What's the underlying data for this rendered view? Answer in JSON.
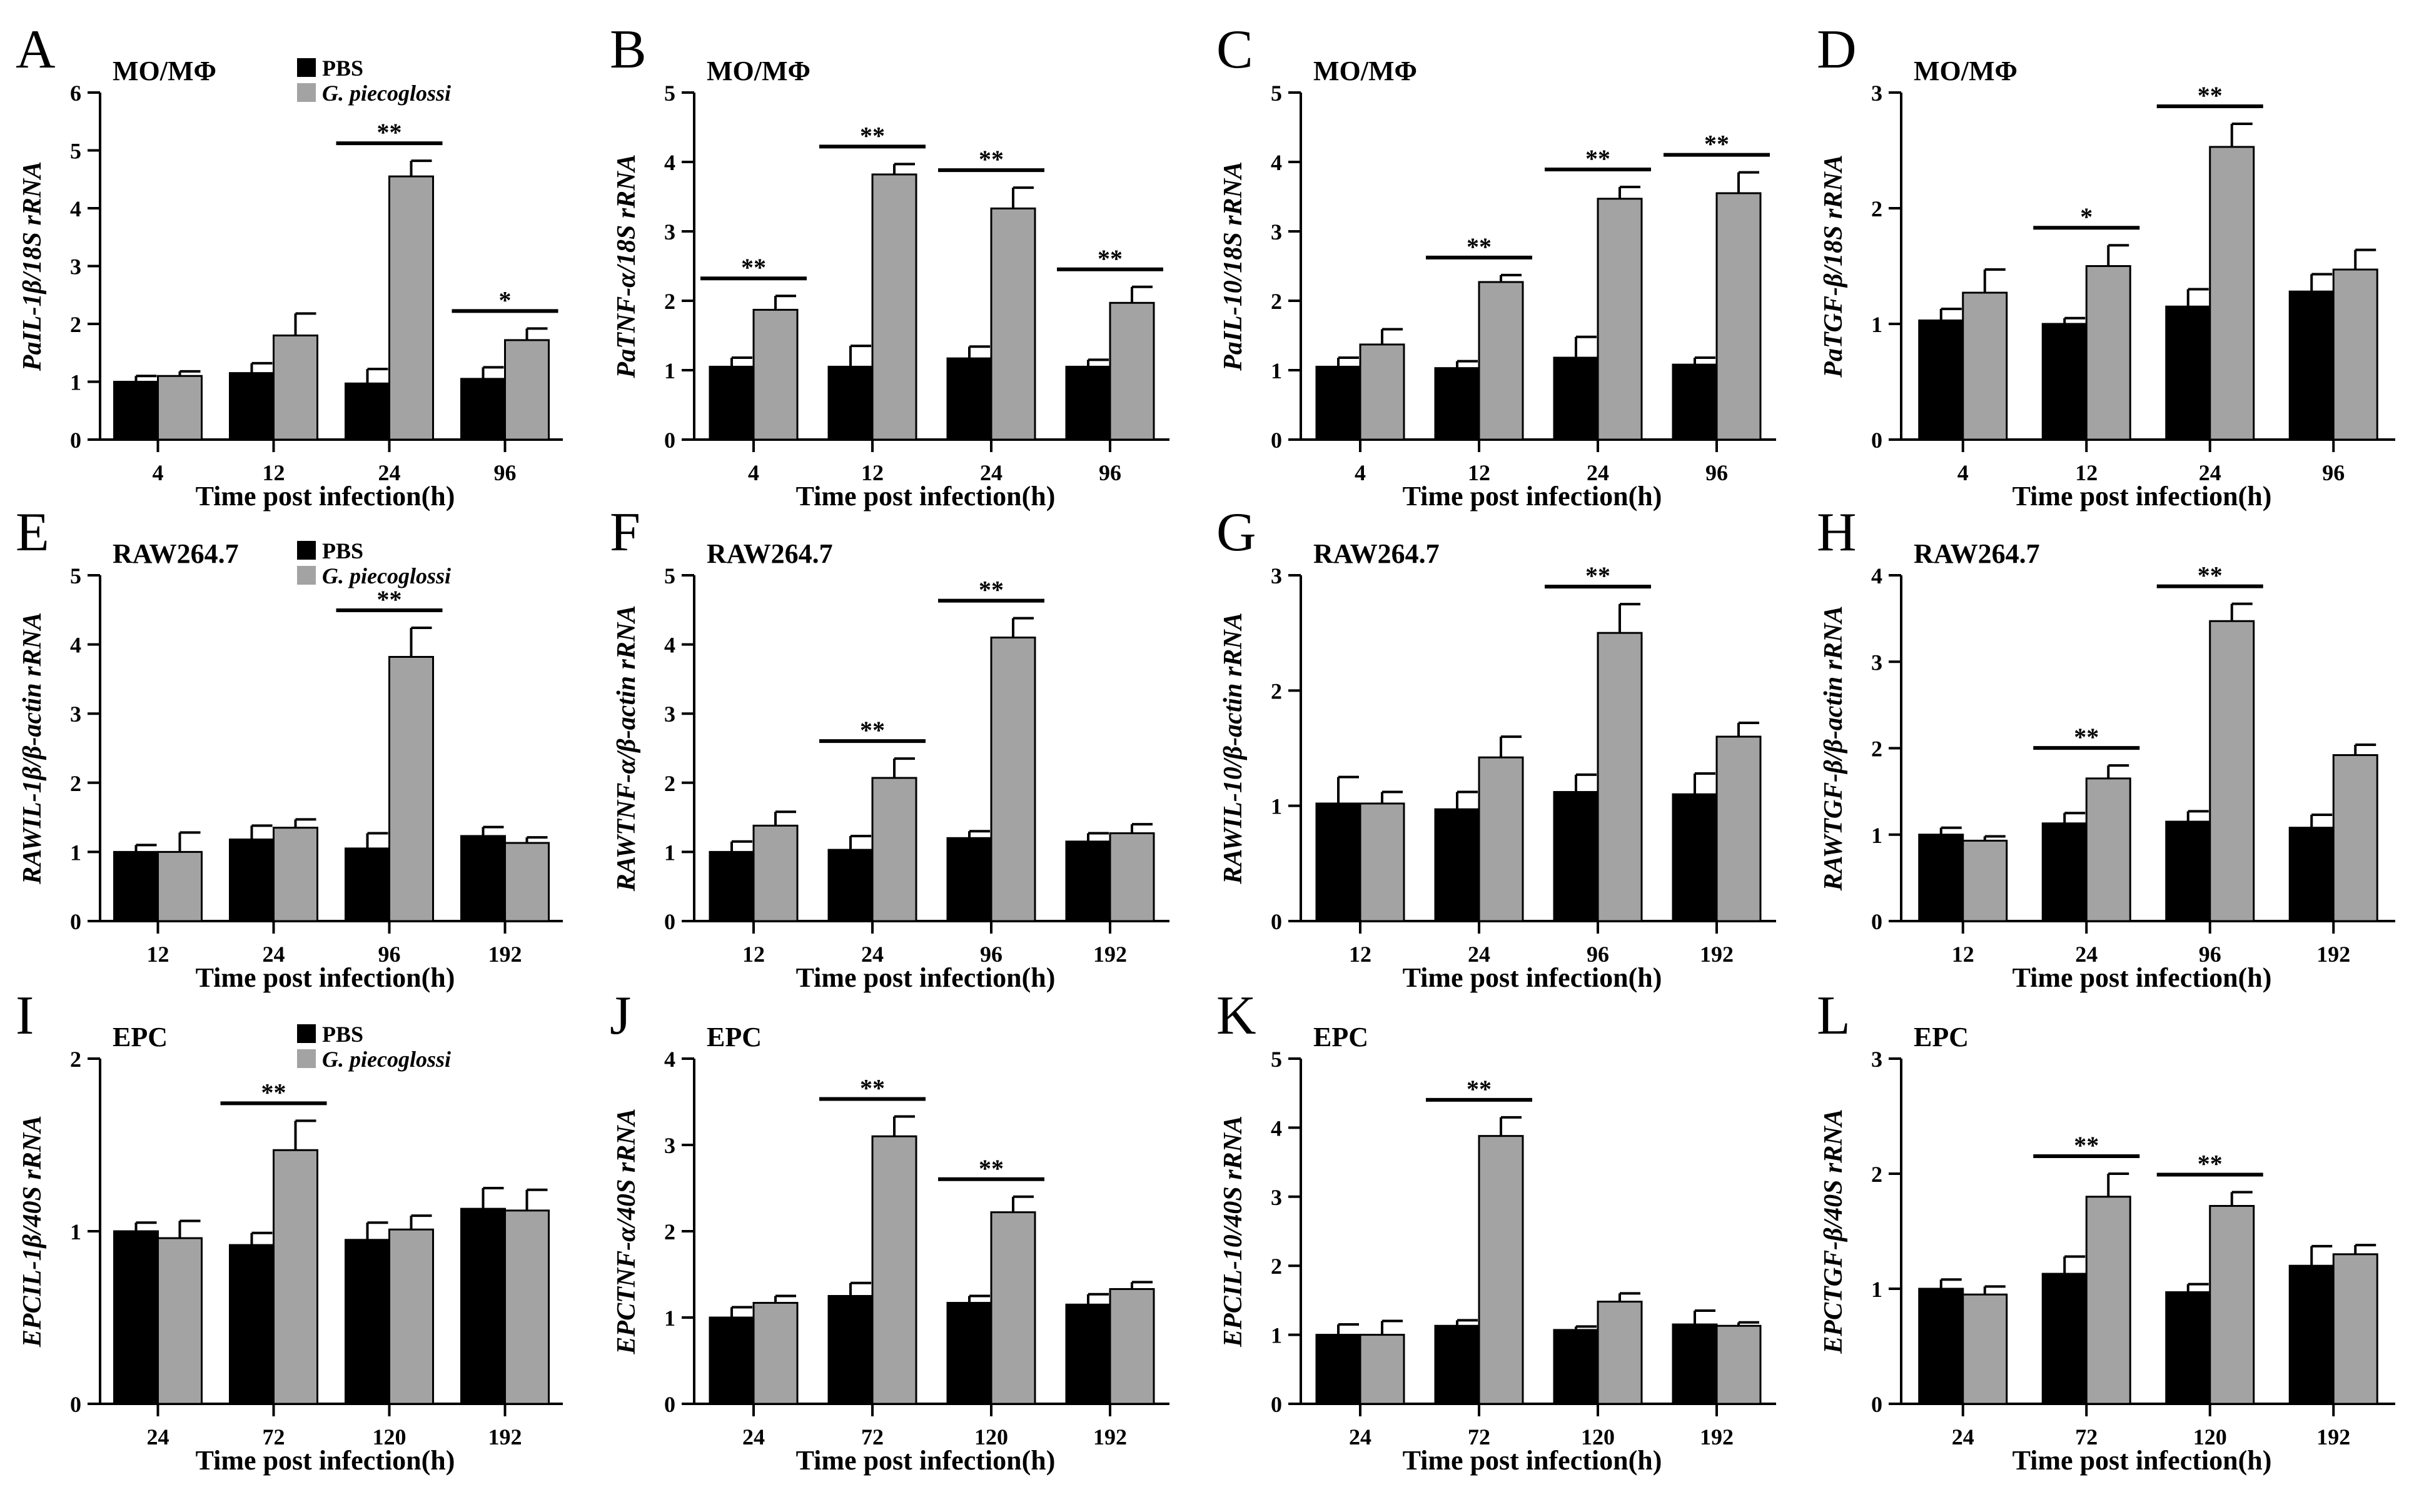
{
  "figure": {
    "series_names": [
      "PBS",
      "G. piecoglossi"
    ],
    "colors": {
      "pbs": "#000000",
      "infected": "#a3a3a3",
      "axis": "#000000",
      "background": "#ffffff"
    }
  },
  "chart_data": [
    {
      "id": "A",
      "type": "bar",
      "title": "MO/MΦ",
      "ylabel": "PaIL-1β/18S rRNA",
      "xlabel": "Time post infection(h)",
      "categories": [
        "4",
        "12",
        "24",
        "96"
      ],
      "ylim": [
        0,
        6
      ],
      "yticks": [
        "0",
        "1",
        "2",
        "3",
        "4",
        "5",
        "6"
      ],
      "legend": true,
      "series": [
        {
          "name": "PBS",
          "values": [
            1.0,
            1.15,
            0.97,
            1.05
          ],
          "errors": [
            0.1,
            0.17,
            0.25,
            0.2
          ]
        },
        {
          "name": "G. piecoglossi",
          "values": [
            1.1,
            1.8,
            4.55,
            1.72
          ],
          "errors": [
            0.08,
            0.38,
            0.27,
            0.2
          ]
        }
      ],
      "significance": [
        "",
        "",
        "**",
        "*"
      ]
    },
    {
      "id": "B",
      "type": "bar",
      "title": "MO/MΦ",
      "ylabel": "PaTNF-α/18S rRNA",
      "xlabel": "Time post infection(h)",
      "categories": [
        "4",
        "12",
        "24",
        "96"
      ],
      "ylim": [
        0,
        5
      ],
      "yticks": [
        "0",
        "1",
        "2",
        "3",
        "4",
        "5"
      ],
      "legend": false,
      "series": [
        {
          "name": "PBS",
          "values": [
            1.05,
            1.05,
            1.17,
            1.05
          ],
          "errors": [
            0.13,
            0.3,
            0.17,
            0.1
          ]
        },
        {
          "name": "G. piecoglossi",
          "values": [
            1.87,
            3.82,
            3.33,
            1.97
          ],
          "errors": [
            0.2,
            0.15,
            0.3,
            0.23
          ]
        }
      ],
      "significance": [
        "**",
        "**",
        "**",
        "**"
      ]
    },
    {
      "id": "C",
      "type": "bar",
      "title": "MO/MΦ",
      "ylabel": "PaIL-10/18S rRNA",
      "xlabel": "Time post infection(h)",
      "categories": [
        "4",
        "12",
        "24",
        "96"
      ],
      "ylim": [
        0,
        5
      ],
      "yticks": [
        "0",
        "1",
        "2",
        "3",
        "4",
        "5"
      ],
      "legend": false,
      "series": [
        {
          "name": "PBS",
          "values": [
            1.05,
            1.03,
            1.18,
            1.08
          ],
          "errors": [
            0.13,
            0.1,
            0.3,
            0.1
          ]
        },
        {
          "name": "G. piecoglossi",
          "values": [
            1.37,
            2.27,
            3.47,
            3.55
          ],
          "errors": [
            0.22,
            0.1,
            0.17,
            0.3
          ]
        }
      ],
      "significance": [
        "",
        "**",
        "**",
        "**"
      ]
    },
    {
      "id": "D",
      "type": "bar",
      "title": "MO/MΦ",
      "ylabel": "PaTGF-β/18S rRNA",
      "xlabel": "Time post infection(h)",
      "categories": [
        "4",
        "12",
        "24",
        "96"
      ],
      "ylim": [
        0,
        3
      ],
      "yticks": [
        "0",
        "1",
        "2",
        "3"
      ],
      "legend": false,
      "series": [
        {
          "name": "PBS",
          "values": [
            1.03,
            1.0,
            1.15,
            1.28
          ],
          "errors": [
            0.1,
            0.05,
            0.15,
            0.15
          ]
        },
        {
          "name": "G. piecoglossi",
          "values": [
            1.27,
            1.5,
            2.53,
            1.47
          ],
          "errors": [
            0.2,
            0.18,
            0.2,
            0.17
          ]
        }
      ],
      "significance": [
        "",
        "*",
        "**",
        ""
      ]
    },
    {
      "id": "E",
      "type": "bar",
      "title": "RAW264.7",
      "ylabel": "RAWIL-1β/β-actin rRNA",
      "xlabel": "Time post infection(h)",
      "categories": [
        "12",
        "24",
        "96",
        "192"
      ],
      "ylim": [
        0,
        5
      ],
      "yticks": [
        "0",
        "1",
        "2",
        "3",
        "4",
        "5"
      ],
      "legend": true,
      "series": [
        {
          "name": "PBS",
          "values": [
            1.0,
            1.18,
            1.05,
            1.23
          ],
          "errors": [
            0.1,
            0.2,
            0.22,
            0.13
          ]
        },
        {
          "name": "G. piecoglossi",
          "values": [
            1.0,
            1.35,
            3.82,
            1.13
          ],
          "errors": [
            0.28,
            0.12,
            0.42,
            0.08
          ]
        }
      ],
      "significance": [
        "",
        "",
        "**",
        ""
      ]
    },
    {
      "id": "F",
      "type": "bar",
      "title": "RAW264.7",
      "ylabel": "RAWTNF-α/β-actin rRNA",
      "xlabel": "Time post infection(h)",
      "categories": [
        "12",
        "24",
        "96",
        "192"
      ],
      "ylim": [
        0,
        5
      ],
      "yticks": [
        "0",
        "1",
        "2",
        "3",
        "4",
        "5"
      ],
      "legend": false,
      "series": [
        {
          "name": "PBS",
          "values": [
            1.0,
            1.03,
            1.2,
            1.15
          ],
          "errors": [
            0.15,
            0.2,
            0.1,
            0.12
          ]
        },
        {
          "name": "G. piecoglossi",
          "values": [
            1.38,
            2.07,
            4.1,
            1.27
          ],
          "errors": [
            0.2,
            0.28,
            0.28,
            0.13
          ]
        }
      ],
      "significance": [
        "",
        "**",
        "**",
        ""
      ]
    },
    {
      "id": "G",
      "type": "bar",
      "title": "RAW264.7",
      "ylabel": "RAWIL-10/β-actin rRNA",
      "xlabel": "Time post infection(h)",
      "categories": [
        "12",
        "24",
        "96",
        "192"
      ],
      "ylim": [
        0,
        3
      ],
      "yticks": [
        "0",
        "1",
        "2",
        "3"
      ],
      "legend": false,
      "series": [
        {
          "name": "PBS",
          "values": [
            1.02,
            0.97,
            1.12,
            1.1
          ],
          "errors": [
            0.23,
            0.15,
            0.15,
            0.18
          ]
        },
        {
          "name": "G. piecoglossi",
          "values": [
            1.02,
            1.42,
            2.5,
            1.6
          ],
          "errors": [
            0.1,
            0.18,
            0.25,
            0.12
          ]
        }
      ],
      "significance": [
        "",
        "",
        "**",
        ""
      ]
    },
    {
      "id": "H",
      "type": "bar",
      "title": "RAW264.7",
      "ylabel": "RAWTGF-β/β-actin rRNA",
      "xlabel": "Time post infection(h)",
      "categories": [
        "12",
        "24",
        "96",
        "192"
      ],
      "ylim": [
        0,
        4
      ],
      "yticks": [
        "0",
        "1",
        "2",
        "3",
        "4"
      ],
      "legend": false,
      "series": [
        {
          "name": "PBS",
          "values": [
            1.0,
            1.13,
            1.15,
            1.08
          ],
          "errors": [
            0.08,
            0.12,
            0.12,
            0.15
          ]
        },
        {
          "name": "G. piecoglossi",
          "values": [
            0.93,
            1.65,
            3.47,
            1.92
          ],
          "errors": [
            0.05,
            0.15,
            0.2,
            0.12
          ]
        }
      ],
      "significance": [
        "",
        "**",
        "**",
        ""
      ]
    },
    {
      "id": "I",
      "type": "bar",
      "title": "EPC",
      "ylabel": "EPCIL-1β/40S rRNA",
      "xlabel": "Time post infection(h)",
      "categories": [
        "24",
        "72",
        "120",
        "192"
      ],
      "ylim": [
        0,
        2
      ],
      "yticks": [
        "0",
        "1",
        "2"
      ],
      "legend": true,
      "series": [
        {
          "name": "PBS",
          "values": [
            1.0,
            0.92,
            0.95,
            1.13
          ],
          "errors": [
            0.05,
            0.07,
            0.1,
            0.12
          ]
        },
        {
          "name": "G. piecoglossi",
          "values": [
            0.96,
            1.47,
            1.01,
            1.12
          ],
          "errors": [
            0.1,
            0.17,
            0.08,
            0.12
          ]
        }
      ],
      "significance": [
        "",
        "**",
        "",
        ""
      ]
    },
    {
      "id": "J",
      "type": "bar",
      "title": "EPC",
      "ylabel": "EPCTNF-α/40S rRNA",
      "xlabel": "Time post infection(h)",
      "categories": [
        "24",
        "72",
        "120",
        "192"
      ],
      "ylim": [
        0,
        4
      ],
      "yticks": [
        "0",
        "1",
        "2",
        "3",
        "4"
      ],
      "legend": false,
      "series": [
        {
          "name": "PBS",
          "values": [
            1.0,
            1.25,
            1.17,
            1.15
          ],
          "errors": [
            0.12,
            0.15,
            0.08,
            0.12
          ]
        },
        {
          "name": "G. piecoglossi",
          "values": [
            1.17,
            3.1,
            2.22,
            1.33
          ],
          "errors": [
            0.08,
            0.23,
            0.18,
            0.08
          ]
        }
      ],
      "significance": [
        "",
        "**",
        "**",
        ""
      ]
    },
    {
      "id": "K",
      "type": "bar",
      "title": "EPC",
      "ylabel": "EPCIL-10/40S rRNA",
      "xlabel": "Time post infection(h)",
      "categories": [
        "24",
        "72",
        "120",
        "192"
      ],
      "ylim": [
        0,
        5
      ],
      "yticks": [
        "0",
        "1",
        "2",
        "3",
        "4",
        "5"
      ],
      "legend": false,
      "series": [
        {
          "name": "PBS",
          "values": [
            1.0,
            1.13,
            1.07,
            1.15
          ],
          "errors": [
            0.15,
            0.08,
            0.05,
            0.2
          ]
        },
        {
          "name": "G. piecoglossi",
          "values": [
            1.0,
            3.88,
            1.48,
            1.13
          ],
          "errors": [
            0.2,
            0.27,
            0.12,
            0.05
          ]
        }
      ],
      "significance": [
        "",
        "**",
        "",
        ""
      ]
    },
    {
      "id": "L",
      "type": "bar",
      "title": "EPC",
      "ylabel": "EPCTGF-β/40S rRNA",
      "xlabel": "Time post infection(h)",
      "categories": [
        "24",
        "72",
        "120",
        "192"
      ],
      "ylim": [
        0,
        3
      ],
      "yticks": [
        "0",
        "1",
        "2",
        "3"
      ],
      "legend": false,
      "series": [
        {
          "name": "PBS",
          "values": [
            1.0,
            1.13,
            0.97,
            1.2
          ],
          "errors": [
            0.08,
            0.15,
            0.07,
            0.17
          ]
        },
        {
          "name": "G. piecoglossi",
          "values": [
            0.95,
            1.8,
            1.72,
            1.3
          ],
          "errors": [
            0.07,
            0.2,
            0.12,
            0.08
          ]
        }
      ],
      "significance": [
        "",
        "**",
        "**",
        ""
      ]
    }
  ]
}
